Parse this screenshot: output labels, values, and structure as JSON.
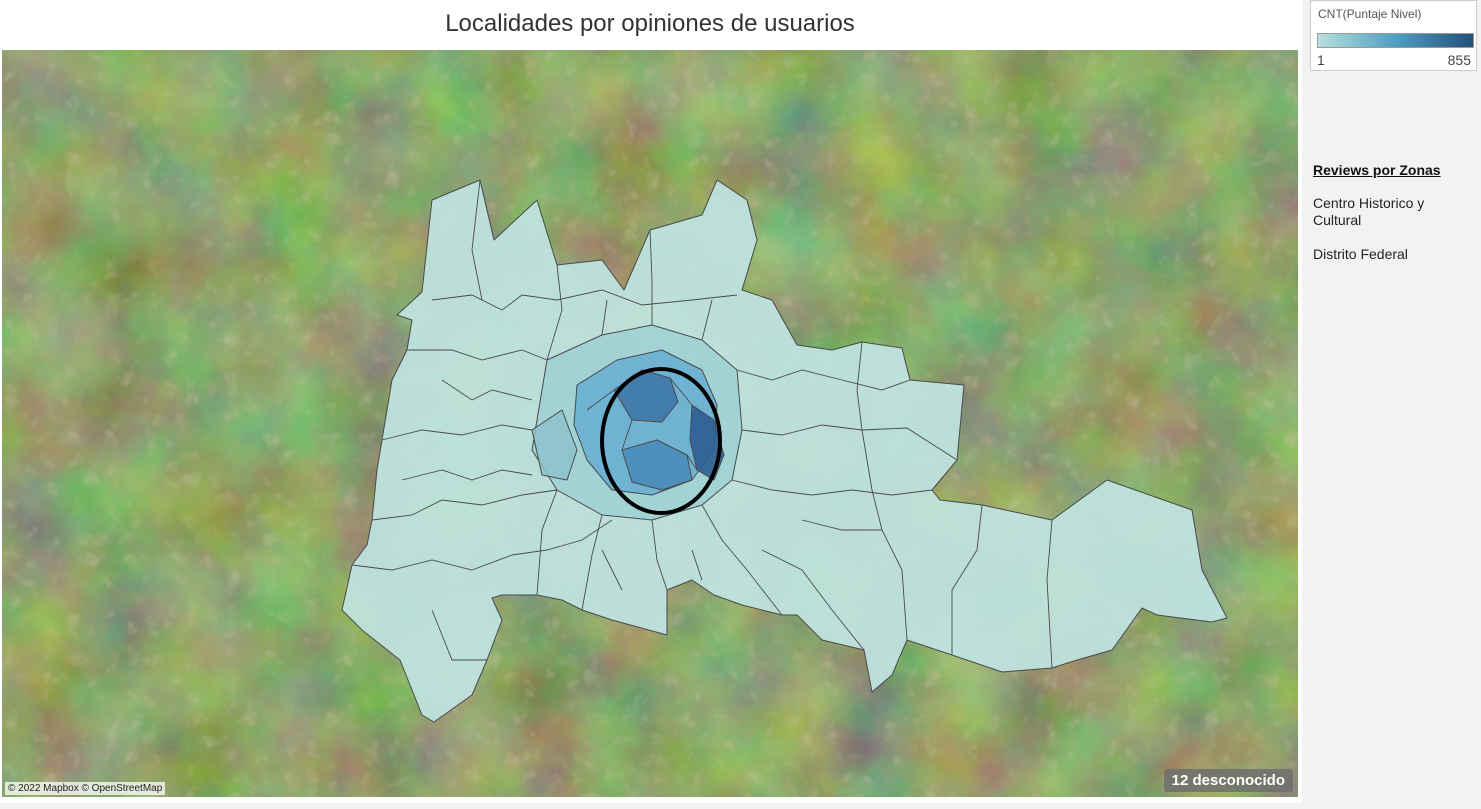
{
  "title": "Localidades por opiniones de usuarios",
  "legend": {
    "title": "CNT(Puntaje Nivel)",
    "min": "1",
    "max": "855",
    "colors": [
      "#b6e0dd",
      "#4f9ec1",
      "#24507a"
    ]
  },
  "zones": {
    "heading": "Reviews por Zonas",
    "items": [
      "Centro Historico y Cultural",
      "Distrito Federal"
    ]
  },
  "map": {
    "attribution": "© 2022 Mapbox © OpenStreetMap",
    "unknown_badge": "12 desconocido",
    "basemap": "satellite"
  }
}
